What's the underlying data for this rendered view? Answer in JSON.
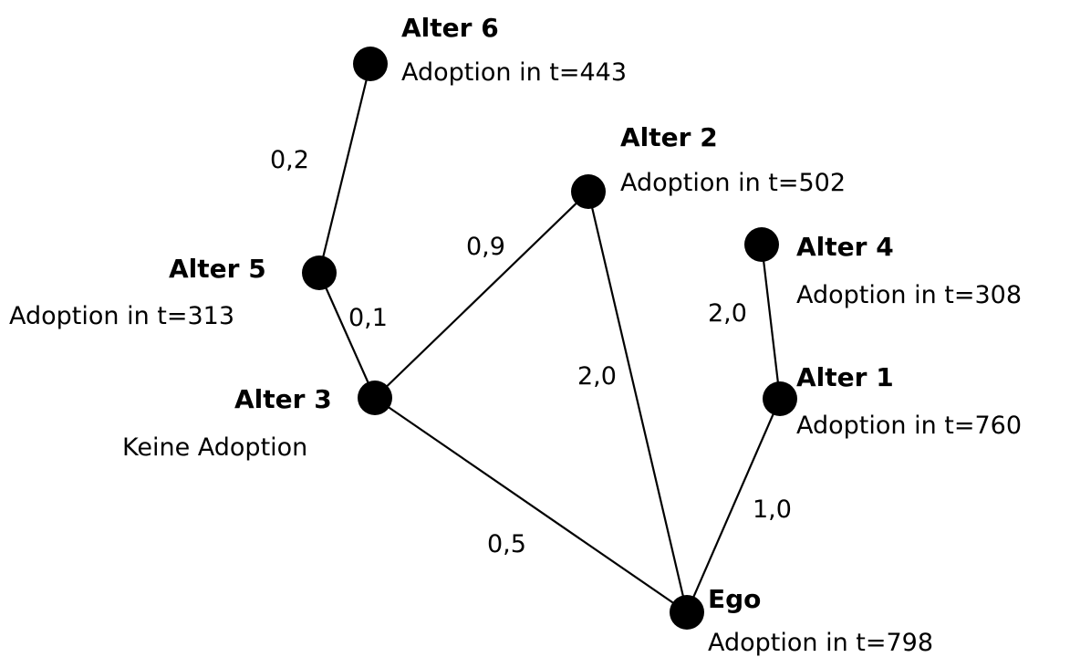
{
  "nodes": [
    {
      "id": "alter6",
      "name": "Alter 6",
      "status": "Adoption in t=443"
    },
    {
      "id": "alter2",
      "name": "Alter 2",
      "status": "Adoption in t=502"
    },
    {
      "id": "alter4",
      "name": "Alter 4",
      "status": "Adoption in t=308"
    },
    {
      "id": "alter5",
      "name": "Alter 5",
      "status": "Adoption in t=313"
    },
    {
      "id": "alter3",
      "name": "Alter 3",
      "status": "Keine Adoption"
    },
    {
      "id": "alter1",
      "name": "Alter 1",
      "status": "Adoption in t=760"
    },
    {
      "id": "ego",
      "name": "Ego",
      "status": "Adoption in t=798"
    }
  ],
  "edges": [
    {
      "from": "alter6",
      "to": "alter5",
      "weight": "0,2"
    },
    {
      "from": "alter5",
      "to": "alter3",
      "weight": "0,1"
    },
    {
      "from": "alter3",
      "to": "alter2",
      "weight": "0,9"
    },
    {
      "from": "alter2",
      "to": "ego",
      "weight": "2,0"
    },
    {
      "from": "alter3",
      "to": "ego",
      "weight": "0,5"
    },
    {
      "from": "alter4",
      "to": "alter1",
      "weight": "2,0"
    },
    {
      "from": "alter1",
      "to": "ego",
      "weight": "1,0"
    }
  ]
}
